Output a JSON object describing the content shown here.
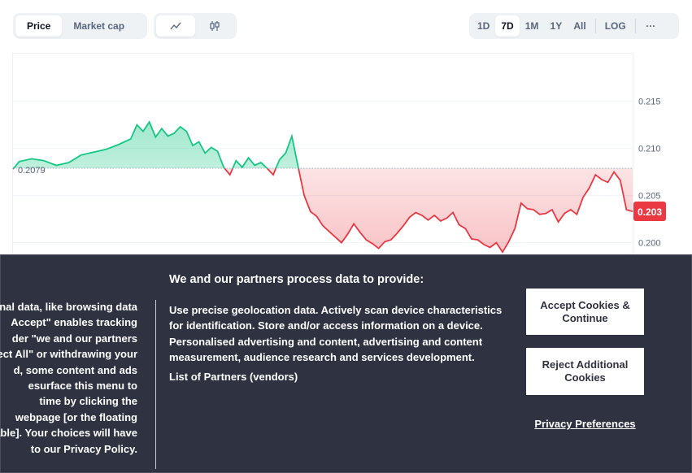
{
  "toolbar": {
    "tabs": [
      "Price",
      "Market cap"
    ],
    "chart_icons": [
      "line-chart-icon",
      "candlestick-icon"
    ],
    "ranges": [
      "1D",
      "7D",
      "1M",
      "1Y",
      "All"
    ],
    "log": "LOG",
    "more": "···"
  },
  "chart": {
    "open_label": "0.2079",
    "current_label": "0.203",
    "colors": {
      "up": "#16c784",
      "down": "#ea3943"
    }
  },
  "chart_data": {
    "type": "area",
    "baseline": 0.2079,
    "current": 0.203,
    "y_ticks": [
      0.215,
      0.21,
      0.205,
      0.2
    ],
    "x_range": [
      0,
      100
    ],
    "points": [
      [
        0,
        0.2078
      ],
      [
        1,
        0.2086
      ],
      [
        3,
        0.2089
      ],
      [
        5,
        0.2087
      ],
      [
        7,
        0.2082
      ],
      [
        9,
        0.2085
      ],
      [
        11,
        0.2093
      ],
      [
        13,
        0.2096
      ],
      [
        15,
        0.2099
      ],
      [
        17,
        0.2104
      ],
      [
        19,
        0.211
      ],
      [
        20,
        0.2125
      ],
      [
        21,
        0.2118
      ],
      [
        22,
        0.2128
      ],
      [
        23,
        0.2112
      ],
      [
        24,
        0.2121
      ],
      [
        25,
        0.2113
      ],
      [
        26,
        0.2116
      ],
      [
        27,
        0.2123
      ],
      [
        28,
        0.2118
      ],
      [
        29,
        0.2103
      ],
      [
        30,
        0.2107
      ],
      [
        31,
        0.2095
      ],
      [
        32,
        0.2101
      ],
      [
        33,
        0.2097
      ],
      [
        34,
        0.208
      ],
      [
        35,
        0.2072
      ],
      [
        36,
        0.2087
      ],
      [
        37,
        0.208
      ],
      [
        38,
        0.209
      ],
      [
        39,
        0.2082
      ],
      [
        40,
        0.2085
      ],
      [
        41,
        0.2079
      ],
      [
        42,
        0.2072
      ],
      [
        43,
        0.2088
      ],
      [
        44,
        0.2095
      ],
      [
        45,
        0.2113
      ],
      [
        46,
        0.2081
      ],
      [
        47,
        0.205
      ],
      [
        48,
        0.2033
      ],
      [
        49,
        0.2028
      ],
      [
        50,
        0.2018
      ],
      [
        51,
        0.2012
      ],
      [
        52,
        0.2006
      ],
      [
        53,
        0.2
      ],
      [
        54,
        0.2009
      ],
      [
        55,
        0.202
      ],
      [
        56,
        0.2011
      ],
      [
        57,
        0.2003
      ],
      [
        58,
        0.1999
      ],
      [
        59,
        0.1994
      ],
      [
        60,
        0.2001
      ],
      [
        61,
        0.2003
      ],
      [
        62,
        0.201
      ],
      [
        63,
        0.2018
      ],
      [
        64,
        0.2027
      ],
      [
        65,
        0.2032
      ],
      [
        66,
        0.2029
      ],
      [
        67,
        0.2024
      ],
      [
        68,
        0.2029
      ],
      [
        69,
        0.2023
      ],
      [
        70,
        0.2026
      ],
      [
        71,
        0.2032
      ],
      [
        72,
        0.2019
      ],
      [
        73,
        0.2015
      ],
      [
        74,
        0.2004
      ],
      [
        75,
        0.2003
      ],
      [
        76,
        0.1998
      ],
      [
        77,
        0.1995
      ],
      [
        78,
        0.2
      ],
      [
        79,
        0.199
      ],
      [
        80,
        0.2001
      ],
      [
        81,
        0.2015
      ],
      [
        82,
        0.2042
      ],
      [
        83,
        0.2036
      ],
      [
        84,
        0.2035
      ],
      [
        85,
        0.203
      ],
      [
        86,
        0.2031
      ],
      [
        87,
        0.2035
      ],
      [
        88,
        0.2022
      ],
      [
        89,
        0.2031
      ],
      [
        90,
        0.2035
      ],
      [
        91,
        0.203
      ],
      [
        92,
        0.2048
      ],
      [
        93,
        0.2058
      ],
      [
        94,
        0.2072
      ],
      [
        95,
        0.2067
      ],
      [
        96,
        0.2064
      ],
      [
        97,
        0.2075
      ],
      [
        98,
        0.2066
      ],
      [
        99,
        0.2035
      ],
      [
        100,
        0.2033
      ]
    ]
  },
  "consent": {
    "left_lines": [
      "onal data, like browsing data",
      "Accept\" enables tracking",
      "der \"we and our partners",
      "ect All\" or withdrawing your",
      "d, some content and ads",
      "esurface this menu to",
      "time by clicking the",
      "webpage [or the floating",
      "able]. Your choices will have",
      "to our Privacy Policy."
    ],
    "heading": "We and our partners process data to provide:",
    "body": "Use precise geolocation data. Actively scan device characteristics for identification. Store and/or access information on a device. Personalised advertising and content, advertising and content measurement, audience research and services development.",
    "partners": "List of Partners (vendors)",
    "accept": "Accept Cookies & Continue",
    "reject": "Reject Additional Cookies",
    "privacy": "Privacy Preferences"
  }
}
